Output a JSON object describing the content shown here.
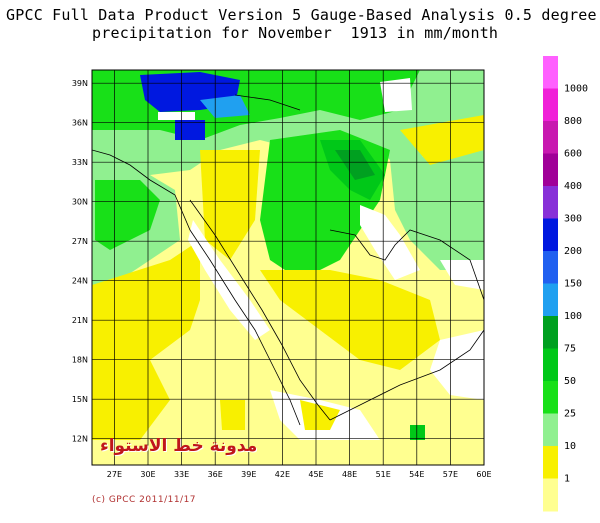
{
  "title_line1": "GPCC Full Data Product Version 5 Gauge-Based Analysis 0.5 degree",
  "title_line2": "precipitation for November  1913 in mm/month",
  "lat_labels": [
    "39N",
    "36N",
    "33N",
    "30N",
    "27N",
    "24N",
    "21N",
    "18N",
    "15N",
    "12N"
  ],
  "lon_labels": [
    "27E",
    "30E",
    "33E",
    "36E",
    "39E",
    "42E",
    "45E",
    "48E",
    "51E",
    "54E",
    "57E",
    "60E"
  ],
  "legend": {
    "labels": [
      "1000",
      "800",
      "600",
      "400",
      "300",
      "200",
      "150",
      "100",
      "75",
      "50",
      "25",
      "10",
      "1"
    ],
    "colors": [
      "#ff60ff",
      "#f020d8",
      "#c818b0",
      "#a00098",
      "#8830d8",
      "#0018e0",
      "#2060f0",
      "#20a0f0",
      "#00a020",
      "#00c818",
      "#18e018",
      "#90f090",
      "#f8f000",
      "#ffff90"
    ]
  },
  "copyright": "(c) GPCC 2011/11/17",
  "watermark": "مدونة خط الاستواء",
  "chart_data": {
    "type": "heatmap",
    "title": "GPCC Full Data Product Version 5 Gauge-Based Analysis 0.5 degree precipitation for November  1913 in mm/month",
    "xlim": [
      25,
      60
    ],
    "ylim": [
      10,
      40
    ],
    "units": "mm/month",
    "colorbar_levels": [
      1,
      10,
      25,
      50,
      75,
      100,
      150,
      200,
      300,
      400,
      600,
      800,
      1000
    ]
  }
}
